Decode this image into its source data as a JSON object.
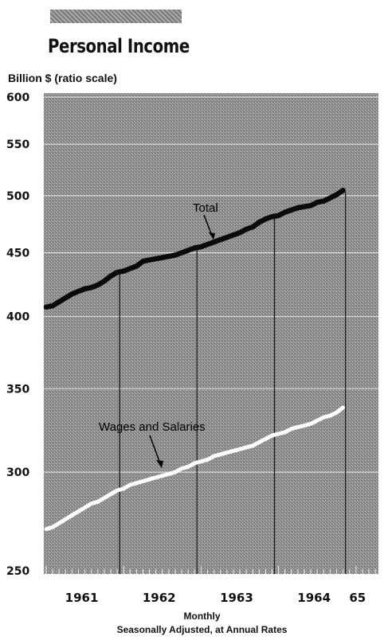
{
  "header": {
    "title": "Personal Income"
  },
  "chart_data": {
    "type": "line",
    "title": "Personal Income",
    "ylabel": "Billion $ (ratio scale)",
    "y_scale": "log",
    "ylim": [
      250,
      600
    ],
    "y_ticks": [
      600,
      550,
      500,
      450,
      400,
      350,
      300,
      250
    ],
    "x_tick_labels": [
      "1961",
      "1962",
      "1963",
      "1964",
      "65"
    ],
    "x_caption": [
      "Monthly",
      "Seasonally Adjusted, at Annual Rates"
    ],
    "frequency": "monthly",
    "x": [
      "1961-01",
      "1961-02",
      "1961-03",
      "1961-04",
      "1961-05",
      "1961-06",
      "1961-07",
      "1961-08",
      "1961-09",
      "1961-10",
      "1961-11",
      "1961-12",
      "1962-01",
      "1962-02",
      "1962-03",
      "1962-04",
      "1962-05",
      "1962-06",
      "1962-07",
      "1962-08",
      "1962-09",
      "1962-10",
      "1962-11",
      "1962-12",
      "1963-01",
      "1963-02",
      "1963-03",
      "1963-04",
      "1963-05",
      "1963-06",
      "1963-07",
      "1963-08",
      "1963-09",
      "1963-10",
      "1963-11",
      "1963-12",
      "1964-01",
      "1964-02",
      "1964-03",
      "1964-04",
      "1964-05",
      "1964-06",
      "1964-07",
      "1964-08",
      "1964-09",
      "1964-10",
      "1964-11"
    ],
    "series": [
      {
        "name": "Total",
        "values": [
          407,
          408,
          411,
          414,
          417,
          419,
          421,
          422,
          424,
          427,
          431,
          434,
          435,
          437,
          439,
          443,
          444,
          445,
          446,
          447,
          448,
          450,
          452,
          454,
          455,
          457,
          459,
          461,
          463,
          465,
          467,
          470,
          472,
          476,
          479,
          481,
          482,
          485,
          487,
          489,
          490,
          491,
          494,
          495,
          498,
          501,
          505
        ]
      },
      {
        "name": "Wages and Salaries",
        "values": [
          270,
          271,
          273,
          275,
          277,
          279,
          281,
          283,
          284,
          286,
          288,
          290,
          291,
          293,
          294,
          295,
          296,
          297,
          298,
          299,
          300,
          302,
          303,
          305,
          306,
          307,
          309,
          310,
          311,
          312,
          313,
          314,
          315,
          317,
          319,
          321,
          322,
          323,
          325,
          326,
          327,
          328,
          330,
          332,
          333,
          335,
          338
        ]
      }
    ],
    "annotations": [
      "Total",
      "Wages and Salaries"
    ],
    "colors": {
      "background": "#9a9a9a",
      "total_line": "#0a0a0a",
      "wages_line": "#ffffff",
      "gridline": "#dcdcdc"
    }
  }
}
